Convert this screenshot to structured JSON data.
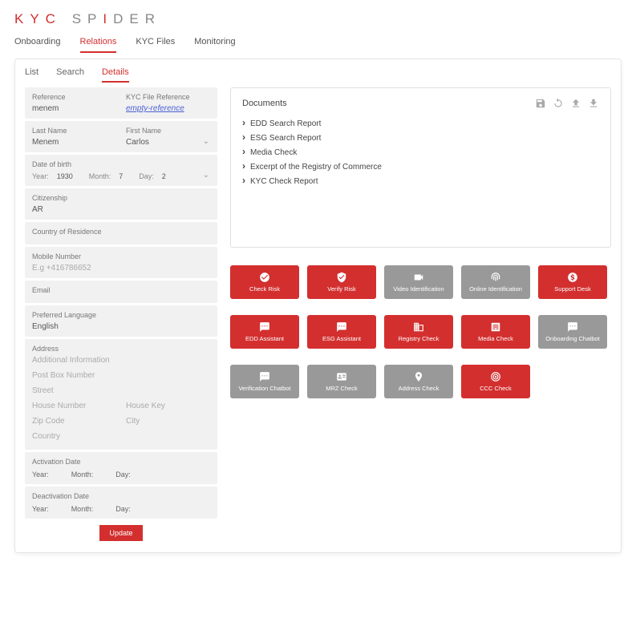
{
  "logo": {
    "pre": "KYC",
    "post": "SP",
    "mid": "I",
    "end": "DER"
  },
  "main_nav": [
    "Onboarding",
    "Relations",
    "KYC Files",
    "Monitoring"
  ],
  "main_nav_active": 1,
  "sub_nav": [
    "List",
    "Search",
    "Details"
  ],
  "sub_nav_active": 2,
  "form": {
    "reference": {
      "label": "Reference",
      "value": "menem"
    },
    "kyc_ref": {
      "label": "KYC File Reference",
      "value": "empty-reference"
    },
    "last_name": {
      "label": "Last Name",
      "value": "Menem"
    },
    "first_name": {
      "label": "First Name",
      "value": "Carlos"
    },
    "dob": {
      "label": "Date of birth",
      "year_l": "Year:",
      "year": "1930",
      "month_l": "Month:",
      "month": "7",
      "day_l": "Day:",
      "day": "2"
    },
    "citizenship": {
      "label": "Citizenship",
      "value": "AR"
    },
    "residence": {
      "label": "Country of Residence",
      "value": ""
    },
    "mobile": {
      "label": "Mobile Number",
      "placeholder": "E.g +416786652"
    },
    "email": {
      "label": "Email",
      "value": ""
    },
    "language": {
      "label": "Preferred Language",
      "value": "English"
    },
    "address": {
      "label": "Address",
      "additional": "Additional Information",
      "postbox": "Post Box Number",
      "street": "Street",
      "house_number": "House Number",
      "house_key": "House Key",
      "zip": "Zip Code",
      "city": "City",
      "country": "Country"
    },
    "activation": {
      "label": "Activation Date",
      "year": "Year:",
      "month": "Month:",
      "day": "Day:"
    },
    "deactivation": {
      "label": "Deactivation Date",
      "year": "Year:",
      "month": "Month:",
      "day": "Day:"
    },
    "update_btn": "Update"
  },
  "documents": {
    "title": "Documents",
    "items": [
      "EDD Search Report",
      "ESG Search Report",
      "Media Check",
      "Excerpt of the Registry of Commerce",
      "KYC Check Report"
    ]
  },
  "actions": {
    "row1": [
      {
        "label": "Check Risk",
        "color": "red",
        "icon": "check-circle"
      },
      {
        "label": "Verify Risk",
        "color": "red",
        "icon": "shield"
      },
      {
        "label": "Video Identification",
        "color": "gray",
        "icon": "video"
      },
      {
        "label": "Online Identification",
        "color": "gray",
        "icon": "fingerprint"
      },
      {
        "label": "Support Desk",
        "color": "red",
        "icon": "dollar"
      }
    ],
    "row2": [
      {
        "label": "EDD Assistant",
        "color": "red",
        "icon": "chat"
      },
      {
        "label": "ESG Assistant",
        "color": "red",
        "icon": "chat"
      },
      {
        "label": "Registry Check",
        "color": "red",
        "icon": "building"
      },
      {
        "label": "Media Check",
        "color": "red",
        "icon": "news"
      },
      {
        "label": "Onboarding Chatbot",
        "color": "gray",
        "icon": "chat"
      }
    ],
    "row3": [
      {
        "label": "Verification Chatbot",
        "color": "gray",
        "icon": "chat"
      },
      {
        "label": "MRZ Check",
        "color": "gray",
        "icon": "id"
      },
      {
        "label": "Address Check",
        "color": "gray",
        "icon": "pin"
      },
      {
        "label": "CCC Check",
        "color": "red",
        "icon": "target"
      }
    ]
  },
  "colors": {
    "red": "#d32f2f",
    "gray": "#999999",
    "bg": "#f1f1f1"
  }
}
